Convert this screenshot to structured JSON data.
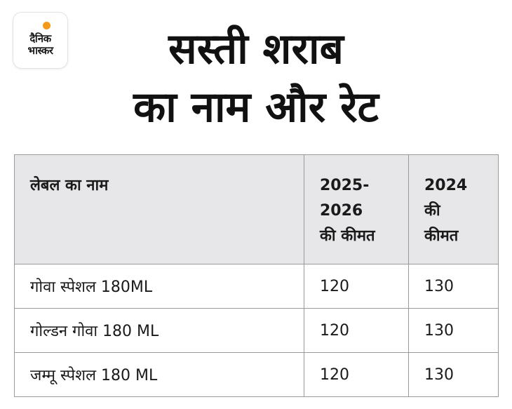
{
  "logo": {
    "line1": "दैनिक",
    "line2": "भास्कर",
    "accent_color": "#f49a1a"
  },
  "title": {
    "line1": "सस्ती शराब",
    "line2": "का नाम और रेट"
  },
  "table": {
    "headers": {
      "name": "लेबल का नाम",
      "price_2025_26": [
        "2025-",
        "2026",
        "की कीमत"
      ],
      "price_2024": [
        "2024",
        "की",
        "कीमत"
      ]
    },
    "rows": [
      {
        "name": "गोवा स्पेशल 180ML",
        "price_2025_26": "120",
        "price_2024": "130"
      },
      {
        "name": "गोल्डन गोवा 180 ML",
        "price_2025_26": "120",
        "price_2024": "130"
      },
      {
        "name": "जम्मू स्पेशल 180 ML",
        "price_2025_26": "120",
        "price_2024": "130"
      }
    ],
    "header_bg": "#e7e7e9",
    "border_color": "#9a9a9a"
  }
}
